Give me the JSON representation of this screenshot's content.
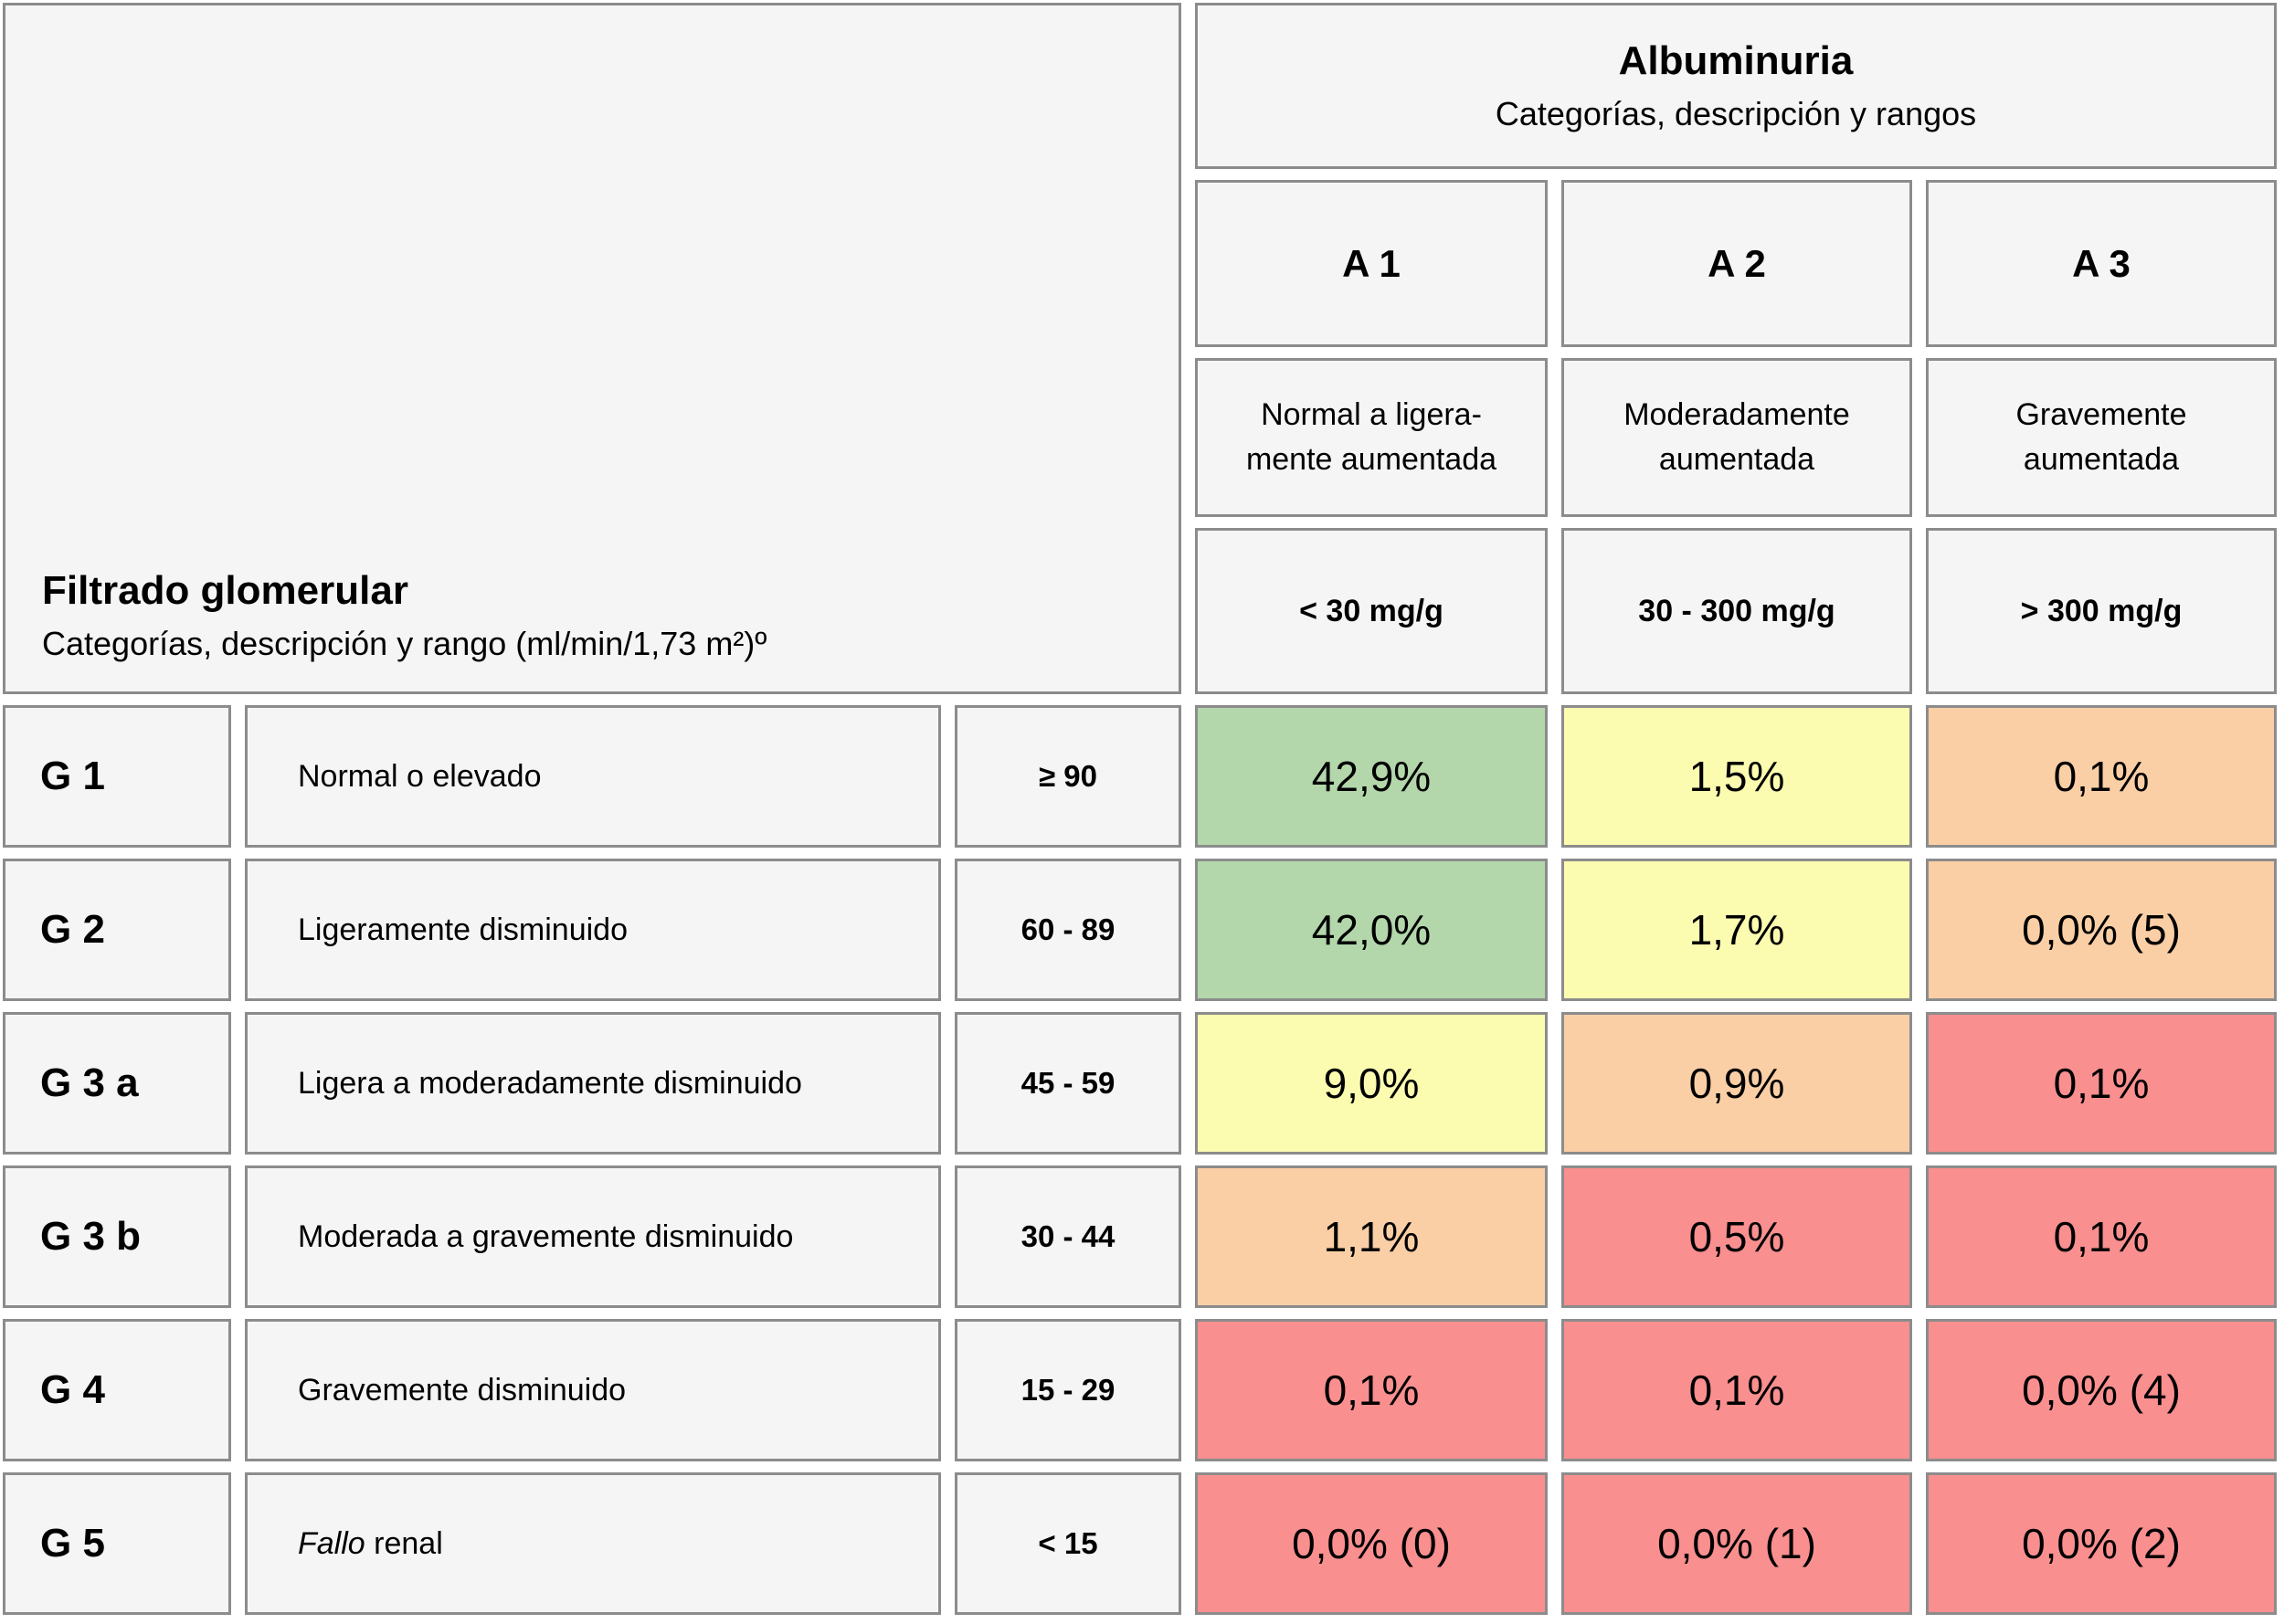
{
  "albuminuria_header": {
    "title": "Albuminuria",
    "subtitle": "Categorías, descripción y rangos"
  },
  "gfr_header": {
    "title": "Filtrado glomerular",
    "subtitle": "Categorías, descripción y rango (ml/min/1,73 m²)º"
  },
  "albuminuria_columns": [
    {
      "code": "A 1",
      "description": "Normal a ligera-\nmente aumentada",
      "range": "< 30 mg/g"
    },
    {
      "code": "A 2",
      "description": "Moderadamente\naumentada",
      "range": "30 - 300 mg/g"
    },
    {
      "code": "A 3",
      "description": "Gravemente\naumentada",
      "range": "> 300 mg/g"
    }
  ],
  "gfr_rows": [
    {
      "code": "G 1",
      "desc_em": "",
      "desc": "Normal o elevado",
      "range": "≥ 90"
    },
    {
      "code": "G 2",
      "desc_em": "",
      "desc": "Ligeramente disminuido",
      "range": "60 - 89"
    },
    {
      "code": "G 3 a",
      "desc_em": "",
      "desc": "Ligera a moderadamente disminuido",
      "range": "45 - 59"
    },
    {
      "code": "G 3 b",
      "desc_em": "",
      "desc": "Moderada a gravemente disminuido",
      "range": "30 - 44"
    },
    {
      "code": "G 4",
      "desc_em": "",
      "desc": "Gravemente disminuido",
      "range": "15 - 29"
    },
    {
      "code": "G 5",
      "desc_em": "Fallo",
      "desc": " renal",
      "range": "< 15"
    }
  ],
  "chart_data": {
    "type": "heatmap",
    "title": "Albuminuria — Categorías, descripción y rangos / Filtrado glomerular — Categorías, descripción y rango (ml/min/1,73 m²)º",
    "columns": [
      "A 1",
      "A 2",
      "A 3"
    ],
    "column_descriptions": [
      "Normal a ligeramente aumentada",
      "Moderadamente aumentada",
      "Gravemente aumentada"
    ],
    "column_ranges": [
      "< 30 mg/g",
      "30 - 300 mg/g",
      "> 300 mg/g"
    ],
    "rows": [
      "G 1",
      "G 2",
      "G 3 a",
      "G 3 b",
      "G 4",
      "G 5"
    ],
    "row_descriptions": [
      "Normal o elevado",
      "Ligeramente disminuido",
      "Ligera a moderadamente disminuido",
      "Moderada a gravemente disminuido",
      "Gravemente disminuido",
      "Fallo renal"
    ],
    "row_ranges": [
      "≥ 90",
      "60 - 89",
      "45 - 59",
      "30 - 44",
      "15 - 29",
      "< 15"
    ],
    "values_percent": [
      [
        42.9,
        1.5,
        0.1
      ],
      [
        42.0,
        1.7,
        0.0
      ],
      [
        9.0,
        0.9,
        0.1
      ],
      [
        1.1,
        0.5,
        0.1
      ],
      [
        0.1,
        0.1,
        0.0
      ],
      [
        0.0,
        0.0,
        0.0
      ]
    ],
    "cell_labels": [
      [
        "42,9%",
        "1,5%",
        "0,1%"
      ],
      [
        "42,0%",
        "1,7%",
        "0,0% (5)"
      ],
      [
        "9,0%",
        "0,9%",
        "0,1%"
      ],
      [
        "1,1%",
        "0,5%",
        "0,1%"
      ],
      [
        "0,1%",
        "0,1%",
        "0,0% (4)"
      ],
      [
        "0,0% (0)",
        "0,0% (1)",
        "0,0% (2)"
      ]
    ],
    "cell_colors": [
      [
        "green",
        "yellow",
        "orange"
      ],
      [
        "green",
        "yellow",
        "orange"
      ],
      [
        "yellow",
        "orange",
        "red"
      ],
      [
        "orange",
        "red",
        "red"
      ],
      [
        "red",
        "red",
        "red"
      ],
      [
        "red",
        "red",
        "red"
      ]
    ],
    "color_hex": {
      "green": "#b3d7ab",
      "yellow": "#fbfcb0",
      "orange": "#fbcfa6",
      "red": "#f98f8f",
      "cell_bg": "#f5f5f5",
      "border": "#8c8c8c"
    }
  }
}
